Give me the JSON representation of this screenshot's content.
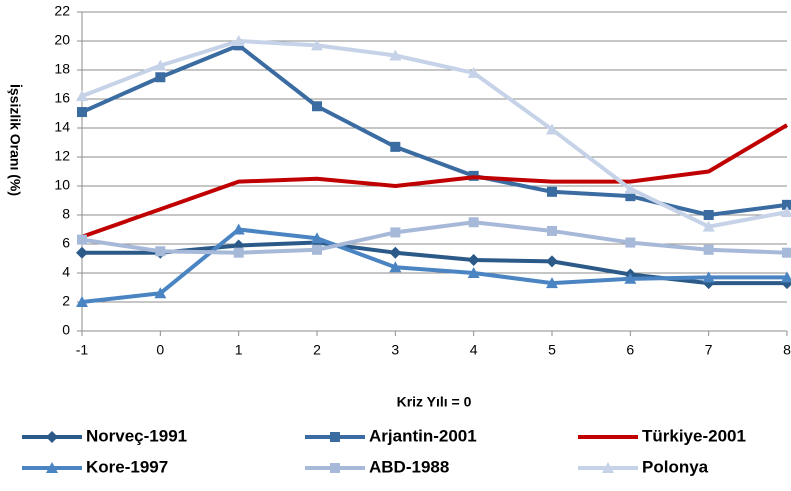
{
  "chart_data": {
    "type": "line",
    "y_label": "İşsizlik Oranı (%)",
    "x_label": "Kriz Yılı = 0",
    "x": [
      -1,
      0,
      1,
      2,
      3,
      4,
      5,
      6,
      7,
      8
    ],
    "xlim": [
      -1,
      8
    ],
    "xticks": [
      -1,
      0,
      1,
      2,
      3,
      4,
      5,
      6,
      7,
      8
    ],
    "ylim": [
      0,
      22
    ],
    "yticks": [
      0,
      2,
      4,
      6,
      8,
      10,
      12,
      14,
      16,
      18,
      20,
      22
    ],
    "grid": true,
    "legend_position": "bottom",
    "series": [
      {
        "name": "Norveç-1991",
        "color": "#2b5a88",
        "marker": "diamond",
        "values": [
          5.4,
          5.4,
          5.9,
          6.1,
          5.4,
          4.9,
          4.8,
          3.9,
          3.3,
          3.3
        ]
      },
      {
        "name": "Arjantin-2001",
        "color": "#3a6ba1",
        "marker": "square",
        "values": [
          15.1,
          17.5,
          19.7,
          15.5,
          12.7,
          10.7,
          9.6,
          9.3,
          8.0,
          8.7
        ]
      },
      {
        "name": "Türkiye-2001",
        "color": "#c00000",
        "marker": "none",
        "values": [
          6.5,
          8.4,
          10.3,
          10.5,
          10.0,
          10.6,
          10.3,
          10.3,
          11.0,
          14.2
        ]
      },
      {
        "name": "Kore-1997",
        "color": "#4a84c2",
        "marker": "triangle",
        "values": [
          2.0,
          2.6,
          7.0,
          6.4,
          4.4,
          4.0,
          3.3,
          3.6,
          3.7,
          3.7
        ]
      },
      {
        "name": "ABD-1988",
        "color": "#a7b9d8",
        "marker": "square",
        "values": [
          6.3,
          5.5,
          5.4,
          5.6,
          6.8,
          7.5,
          6.9,
          6.1,
          5.6,
          5.4
        ]
      },
      {
        "name": "Polonya",
        "color": "#c6d2e7",
        "marker": "triangle",
        "values": [
          16.2,
          18.3,
          20.0,
          19.7,
          19.0,
          17.8,
          13.9,
          9.8,
          7.2,
          8.2
        ]
      }
    ]
  }
}
